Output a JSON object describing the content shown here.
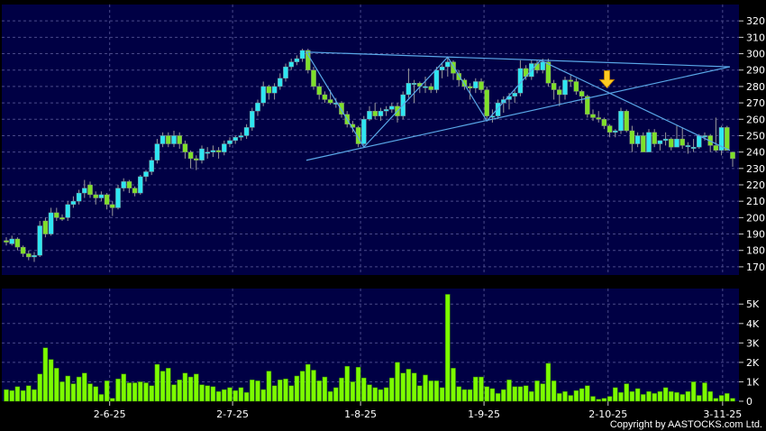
{
  "copyright": "Copyright by AASTOCKS.com Ltd.",
  "chart_data": [
    {
      "type": "candlestick",
      "panel": "price",
      "ylim": [
        165,
        330
      ],
      "yticks": [
        170,
        180,
        190,
        200,
        210,
        220,
        230,
        240,
        250,
        260,
        270,
        280,
        290,
        300,
        310,
        320
      ],
      "grid": true,
      "colors": {
        "up": "#2ee6f2",
        "down": "#7ee02a",
        "wick": "#9a9a9a",
        "background": "#000044",
        "trendline": "#5aa8e8",
        "arrow": "#ffcc22"
      },
      "ohlc": [
        [
          186,
          188,
          183,
          185
        ],
        [
          184,
          189,
          183,
          187
        ],
        [
          187,
          188,
          180,
          182
        ],
        [
          182,
          183,
          176,
          178
        ],
        [
          178,
          180,
          174,
          176
        ],
        [
          176,
          179,
          173,
          177
        ],
        [
          177,
          198,
          176,
          195
        ],
        [
          198,
          200,
          188,
          190
        ],
        [
          190,
          206,
          189,
          203
        ],
        [
          203,
          206,
          198,
          200
        ],
        [
          200,
          202,
          198,
          199
        ],
        [
          200,
          210,
          198,
          208
        ],
        [
          208,
          213,
          206,
          210
        ],
        [
          210,
          217,
          208,
          215
        ],
        [
          215,
          223,
          212,
          218
        ],
        [
          220,
          222,
          212,
          214
        ],
        [
          214,
          216,
          208,
          212
        ],
        [
          212,
          216,
          210,
          214
        ],
        [
          214,
          215,
          205,
          208
        ],
        [
          208,
          210,
          201,
          206
        ],
        [
          206,
          220,
          205,
          218
        ],
        [
          218,
          224,
          216,
          222
        ],
        [
          222,
          223,
          215,
          218
        ],
        [
          218,
          219,
          213,
          215
        ],
        [
          215,
          226,
          214,
          225
        ],
        [
          225,
          229,
          222,
          228
        ],
        [
          228,
          237,
          226,
          235
        ],
        [
          235,
          248,
          233,
          245
        ],
        [
          245,
          252,
          243,
          250
        ],
        [
          250,
          252,
          243,
          245
        ],
        [
          245,
          253,
          243,
          250
        ],
        [
          250,
          252,
          242,
          245
        ],
        [
          245,
          247,
          236,
          240
        ],
        [
          240,
          241,
          230,
          236
        ],
        [
          236,
          238,
          229,
          235
        ],
        [
          235,
          244,
          233,
          242
        ],
        [
          240,
          243,
          236,
          240
        ],
        [
          240,
          244,
          237,
          241
        ],
        [
          241,
          243,
          236,
          240
        ],
        [
          240,
          247,
          238,
          245
        ],
        [
          245,
          249,
          243,
          247
        ],
        [
          247,
          250,
          245,
          249
        ],
        [
          249,
          252,
          247,
          250
        ],
        [
          250,
          257,
          248,
          255
        ],
        [
          255,
          267,
          253,
          265
        ],
        [
          265,
          272,
          262,
          270
        ],
        [
          270,
          283,
          268,
          280
        ],
        [
          280,
          281,
          272,
          276
        ],
        [
          276,
          282,
          272,
          280
        ],
        [
          280,
          288,
          278,
          285
        ],
        [
          285,
          294,
          283,
          292
        ],
        [
          292,
          297,
          290,
          295
        ],
        [
          295,
          299,
          293,
          297
        ],
        [
          297,
          303,
          295,
          302
        ],
        [
          302,
          303,
          288,
          290
        ],
        [
          290,
          292,
          278,
          280
        ],
        [
          280,
          282,
          272,
          275
        ],
        [
          275,
          277,
          270,
          272
        ],
        [
          272,
          278,
          269,
          270
        ],
        [
          270,
          273,
          267,
          270
        ],
        [
          270,
          271,
          261,
          263
        ],
        [
          263,
          265,
          255,
          257
        ],
        [
          257,
          259,
          252,
          255
        ],
        [
          255,
          256,
          243,
          245
        ],
        [
          245,
          262,
          244,
          260
        ],
        [
          260,
          268,
          259,
          265
        ],
        [
          265,
          270,
          260,
          262
        ],
        [
          262,
          267,
          259,
          265
        ],
        [
          265,
          268,
          262,
          266
        ],
        [
          266,
          270,
          264,
          268
        ],
        [
          268,
          270,
          258,
          262
        ],
        [
          262,
          277,
          260,
          275
        ],
        [
          275,
          291,
          273,
          282
        ],
        [
          282,
          284,
          270,
          282
        ],
        [
          282,
          283,
          276,
          280
        ],
        [
          280,
          286,
          276,
          280
        ],
        [
          280,
          282,
          276,
          278
        ],
        [
          278,
          292,
          276,
          290
        ],
        [
          290,
          294,
          285,
          292
        ],
        [
          292,
          298,
          286,
          295
        ],
        [
          295,
          296,
          284,
          288
        ],
        [
          288,
          290,
          280,
          284
        ],
        [
          284,
          285,
          278,
          280
        ],
        [
          280,
          282,
          272,
          279
        ],
        [
          279,
          285,
          276,
          283
        ],
        [
          283,
          285,
          276,
          278
        ],
        [
          278,
          280,
          260,
          262
        ],
        [
          262,
          266,
          258,
          262
        ],
        [
          262,
          272,
          260,
          270
        ],
        [
          270,
          274,
          264,
          272
        ],
        [
          272,
          276,
          266,
          274
        ],
        [
          274,
          278,
          270,
          276
        ],
        [
          276,
          296,
          274,
          291
        ],
        [
          291,
          293,
          284,
          286
        ],
        [
          286,
          296,
          284,
          294
        ],
        [
          294,
          296,
          288,
          290
        ],
        [
          290,
          297,
          288,
          295
        ],
        [
          295,
          297,
          280,
          282
        ],
        [
          282,
          284,
          272,
          278
        ],
        [
          278,
          280,
          268,
          275
        ],
        [
          275,
          286,
          272,
          284
        ],
        [
          284,
          287,
          280,
          283
        ],
        [
          283,
          285,
          275,
          277
        ],
        [
          277,
          278,
          270,
          274
        ],
        [
          274,
          275,
          261,
          263
        ],
        [
          263,
          266,
          259,
          261
        ],
        [
          261,
          265,
          258,
          260
        ],
        [
          260,
          261,
          254,
          256
        ],
        [
          256,
          257,
          249,
          252
        ],
        [
          252,
          254,
          249,
          253
        ],
        [
          253,
          267,
          251,
          265
        ],
        [
          265,
          266,
          252,
          253
        ],
        [
          253,
          256,
          240,
          245
        ],
        [
          245,
          252,
          243,
          250
        ],
        [
          250,
          252,
          240,
          240
        ],
        [
          240,
          254,
          240,
          252
        ],
        [
          252,
          254,
          243,
          245
        ],
        [
          245,
          247,
          241,
          247
        ],
        [
          247,
          252,
          244,
          248
        ],
        [
          248,
          249,
          241,
          243
        ],
        [
          243,
          256,
          243,
          248
        ],
        [
          248,
          255,
          242,
          244
        ],
        [
          244,
          246,
          239,
          244
        ],
        [
          243,
          248,
          240,
          243
        ],
        [
          243,
          251,
          242,
          250
        ],
        [
          250,
          252,
          247,
          250
        ],
        [
          250,
          251,
          240,
          244
        ],
        [
          244,
          261,
          240,
          241
        ],
        [
          241,
          256,
          238,
          255
        ],
        [
          255,
          256,
          241,
          241
        ],
        [
          240,
          240,
          231,
          236
        ]
      ],
      "trendlines": [
        {
          "from": [
            53.7,
            301
          ],
          "to": [
            129.5,
            292
          ]
        },
        {
          "from": [
            53.7,
            235
          ],
          "to": [
            129.5,
            292
          ]
        },
        {
          "points": [
            [
              53.7,
              301
            ],
            [
              64,
              243
            ],
            [
              79,
              298
            ],
            [
              86,
              259
            ],
            [
              95.6,
              296
            ],
            [
              129.5,
              241
            ]
          ]
        }
      ],
      "annotation": {
        "type": "down-arrow",
        "at": [
          107.5,
          283
        ]
      }
    },
    {
      "type": "bar",
      "panel": "volume",
      "ylim": [
        0,
        5.8
      ],
      "yticks": [
        0,
        1,
        2,
        3,
        4,
        5
      ],
      "ytick_labels": [
        "0",
        "1K",
        "2K",
        "3K",
        "4K",
        "5K"
      ],
      "grid": true,
      "colors": {
        "bar": "#7cfc00",
        "background": "#000044"
      },
      "values": [
        0.6,
        0.55,
        0.75,
        0.55,
        0.8,
        0.6,
        1.4,
        2.75,
        2.15,
        1.7,
        1.0,
        1.3,
        0.9,
        1.25,
        1.45,
        0.9,
        0.75,
        0.35,
        1.05,
        0.15,
        1.15,
        1.4,
        0.95,
        0.95,
        1.0,
        0.95,
        0.8,
        1.9,
        1.55,
        1.7,
        0.85,
        1.1,
        1.45,
        1.25,
        1.4,
        0.85,
        0.8,
        0.75,
        0.5,
        0.6,
        0.7,
        0.55,
        0.7,
        0.45,
        1.1,
        1.05,
        0.6,
        1.55,
        0.8,
        1.1,
        1.15,
        0.8,
        1.3,
        1.55,
        1.9,
        1.6,
        1.05,
        1.25,
        0.5,
        0.7,
        1.2,
        1.8,
        1.0,
        1.75,
        1.2,
        0.85,
        0.7,
        0.6,
        0.7,
        1.2,
        2.0,
        1.45,
        1.65,
        1.45,
        0.8,
        1.35,
        1.05,
        1.05,
        0.7,
        5.5,
        1.7,
        0.75,
        0.6,
        0.6,
        1.25,
        1.25,
        0.75,
        0.65,
        0.4,
        0.6,
        1.1,
        0.75,
        0.75,
        0.8,
        0.5,
        1.05,
        0.9,
        1.95,
        1.05,
        0.4,
        0.5,
        0.3,
        0.55,
        0.65,
        0.8,
        0.25,
        0.1,
        0.15,
        0.25,
        0.7,
        0.45,
        0.9,
        0.5,
        0.65,
        0.35,
        0.5,
        0.4,
        0.5,
        0.7,
        0.5,
        0.45,
        0.35,
        0.5,
        1.0,
        0.3,
        0.95,
        0.5,
        0.15,
        0.3,
        0.4,
        0.15
      ]
    }
  ],
  "xticks": [
    {
      "label": "2-6-25",
      "index": 18.5
    },
    {
      "label": "2-7-25",
      "index": 40.5
    },
    {
      "label": "1-8-25",
      "index": 63.4
    },
    {
      "label": "1-9-25",
      "index": 85.5
    },
    {
      "label": "2-10-25",
      "index": 107.7
    },
    {
      "label": "3-11-25",
      "index": 128.2
    }
  ]
}
